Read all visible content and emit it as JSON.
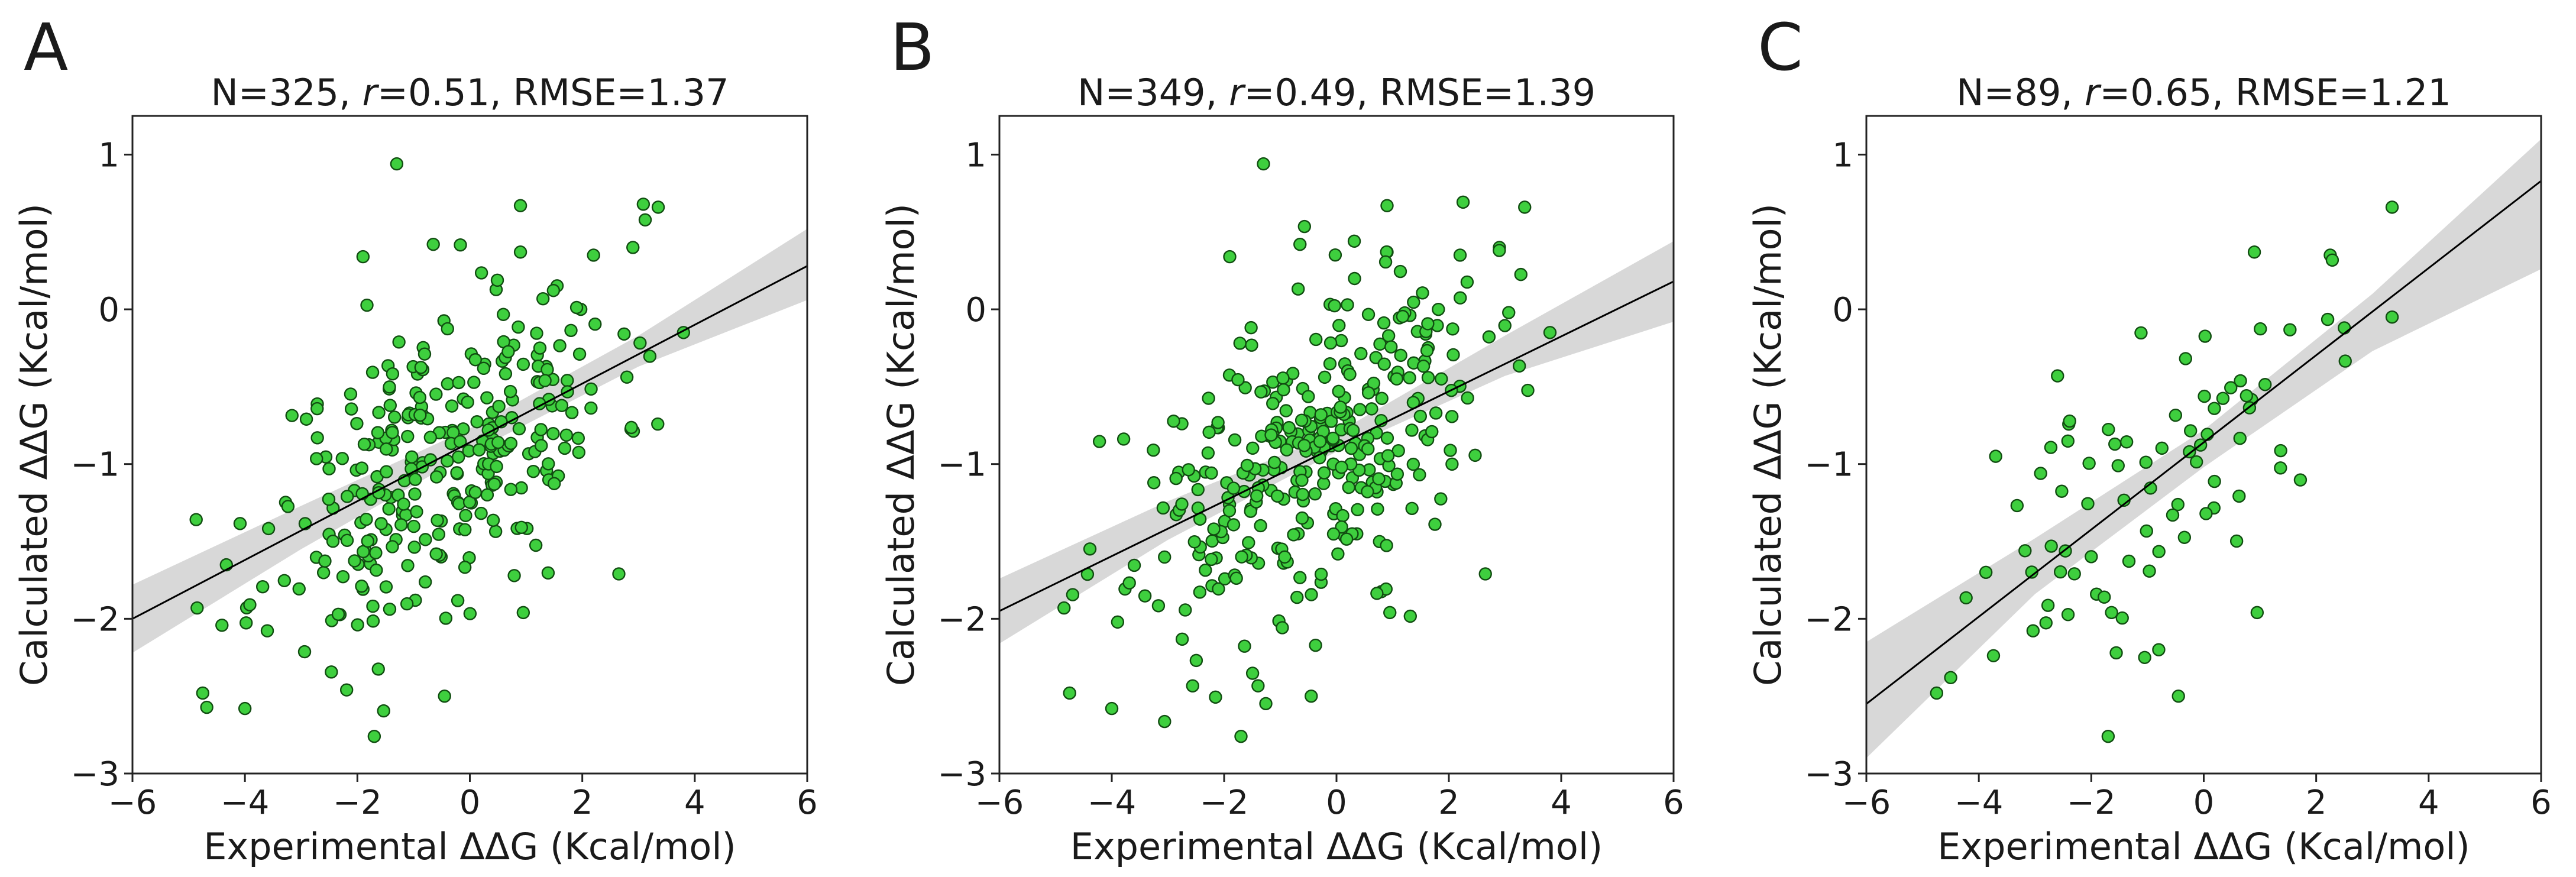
{
  "chart_data": [
    {
      "type": "scatter",
      "panel_label": "A",
      "title": "N=325, r=0.51, RMSE=1.37",
      "title_parts": [
        "N=325, ",
        "r",
        "=0.51, RMSE=1.37"
      ],
      "xlabel": "Experimental ΔΔG (Kcal/mol)",
      "ylabel": "Calculated ΔΔG (Kcal/mol)",
      "xlim": [
        -6,
        6
      ],
      "ylim": [
        -3,
        1.25
      ],
      "xticks": [
        -6,
        -4,
        -2,
        0,
        2,
        4,
        6
      ],
      "yticks": [
        -3,
        -2,
        -1,
        0,
        1
      ],
      "xtick_labels": [
        "−6",
        "−4",
        "−2",
        "0",
        "2",
        "4",
        "6"
      ],
      "ytick_labels": [
        "−3",
        "−2",
        "−1",
        "0",
        "1"
      ],
      "fit": {
        "x": [
          -6,
          6
        ],
        "y": [
          -2.0,
          0.28
        ]
      },
      "band": {
        "x": [
          -6,
          -3,
          0,
          3,
          6
        ],
        "lower": [
          -2.22,
          -1.55,
          -0.93,
          -0.37,
          0.06
        ],
        "upper": [
          -1.78,
          -1.27,
          -0.77,
          -0.17,
          0.52
        ]
      },
      "points": {
        "n": 325,
        "seed": 11,
        "color": "#3ecf3e",
        "x_mean": -0.5,
        "x_sd": 1.55,
        "slope": 0.19,
        "intercept": -0.86,
        "resid_sd": 0.48,
        "outliers": [
          [
            -1.3,
            0.94
          ],
          [
            0.9,
            0.67
          ],
          [
            3.35,
            0.66
          ],
          [
            0.9,
            0.37
          ],
          [
            2.2,
            0.35
          ],
          [
            2.9,
            0.4
          ],
          [
            -1.9,
            0.34
          ],
          [
            -0.65,
            0.42
          ],
          [
            3.8,
            -0.15
          ],
          [
            -4.75,
            -2.48
          ],
          [
            -4.0,
            -2.58
          ],
          [
            -1.7,
            -2.76
          ],
          [
            -0.45,
            -2.5
          ],
          [
            2.65,
            -1.71
          ],
          [
            0.95,
            -1.96
          ],
          [
            -4.85,
            -1.93
          ]
        ]
      }
    },
    {
      "type": "scatter",
      "panel_label": "B",
      "title": "N=349, r=0.49, RMSE=1.39",
      "title_parts": [
        "N=349, ",
        "r",
        "=0.49, RMSE=1.39"
      ],
      "xlabel": "Experimental ΔΔG (Kcal/mol)",
      "ylabel": "Calculated ΔΔG (Kcal/mol)",
      "xlim": [
        -6,
        6
      ],
      "ylim": [
        -3,
        1.25
      ],
      "xticks": [
        -6,
        -4,
        -2,
        0,
        2,
        4,
        6
      ],
      "yticks": [
        -3,
        -2,
        -1,
        0,
        1
      ],
      "xtick_labels": [
        "−6",
        "−4",
        "−2",
        "0",
        "2",
        "4",
        "6"
      ],
      "ytick_labels": [
        "−3",
        "−2",
        "−1",
        "0",
        "1"
      ],
      "fit": {
        "x": [
          -6,
          6
        ],
        "y": [
          -1.95,
          0.18
        ]
      },
      "band": {
        "x": [
          -6,
          -3,
          0,
          3,
          6
        ],
        "lower": [
          -2.16,
          -1.49,
          -0.92,
          -0.43,
          -0.08
        ],
        "upper": [
          -1.74,
          -1.24,
          -0.8,
          -0.17,
          0.44
        ]
      },
      "points": {
        "n": 349,
        "seed": 23,
        "color": "#3ecf3e",
        "x_mean": -0.5,
        "x_sd": 1.55,
        "slope": 0.18,
        "intercept": -0.87,
        "resid_sd": 0.49,
        "outliers": [
          [
            -1.3,
            0.94
          ],
          [
            0.9,
            0.67
          ],
          [
            3.35,
            0.66
          ],
          [
            0.9,
            0.37
          ],
          [
            2.2,
            0.35
          ],
          [
            2.9,
            0.4
          ],
          [
            -1.9,
            0.34
          ],
          [
            -0.65,
            0.42
          ],
          [
            3.8,
            -0.15
          ],
          [
            -4.75,
            -2.48
          ],
          [
            -4.0,
            -2.58
          ],
          [
            -1.7,
            -2.76
          ],
          [
            -0.45,
            -2.5
          ],
          [
            2.65,
            -1.71
          ],
          [
            0.95,
            -1.96
          ],
          [
            -4.85,
            -1.93
          ]
        ]
      }
    },
    {
      "type": "scatter",
      "panel_label": "C",
      "title": "N=89, r=0.65, RMSE=1.21",
      "title_parts": [
        "N=89, ",
        "r",
        "=0.65, RMSE=1.21"
      ],
      "xlabel": "Experimental ΔΔG (Kcal/mol)",
      "ylabel": "Calculated ΔΔG (Kcal/mol)",
      "xlim": [
        -6,
        6
      ],
      "ylim": [
        -3,
        1.25
      ],
      "xticks": [
        -6,
        -4,
        -2,
        0,
        2,
        4,
        6
      ],
      "yticks": [
        -3,
        -2,
        -1,
        0,
        1
      ],
      "xtick_labels": [
        "−6",
        "−4",
        "−2",
        "0",
        "2",
        "4",
        "6"
      ],
      "ytick_labels": [
        "−3",
        "−2",
        "−1",
        "0",
        "1"
      ],
      "fit": {
        "x": [
          -6,
          6
        ],
        "y": [
          -2.55,
          0.83
        ]
      },
      "band": {
        "x": [
          -6,
          -3,
          0,
          3,
          6
        ],
        "lower": [
          -2.9,
          -1.84,
          -1.02,
          -0.27,
          0.26
        ],
        "upper": [
          -2.15,
          -1.48,
          -0.78,
          0.1,
          1.1
        ]
      },
      "points": {
        "n": 89,
        "seed": 37,
        "color": "#3ecf3e",
        "x_mean": -0.8,
        "x_sd": 1.45,
        "slope": 0.28,
        "intercept": -0.86,
        "resid_sd": 0.42,
        "outliers": [
          [
            3.35,
            0.66
          ],
          [
            0.9,
            0.37
          ],
          [
            2.25,
            0.35
          ],
          [
            3.35,
            -0.05
          ],
          [
            2.5,
            -0.12
          ],
          [
            -2.6,
            -0.43
          ],
          [
            -3.7,
            -0.95
          ],
          [
            -4.5,
            -2.38
          ],
          [
            -4.75,
            -2.48
          ],
          [
            -1.7,
            -2.76
          ],
          [
            -0.45,
            -2.5
          ],
          [
            0.95,
            -1.96
          ],
          [
            -1.05,
            -2.25
          ],
          [
            -0.8,
            -2.2
          ]
        ]
      }
    }
  ]
}
